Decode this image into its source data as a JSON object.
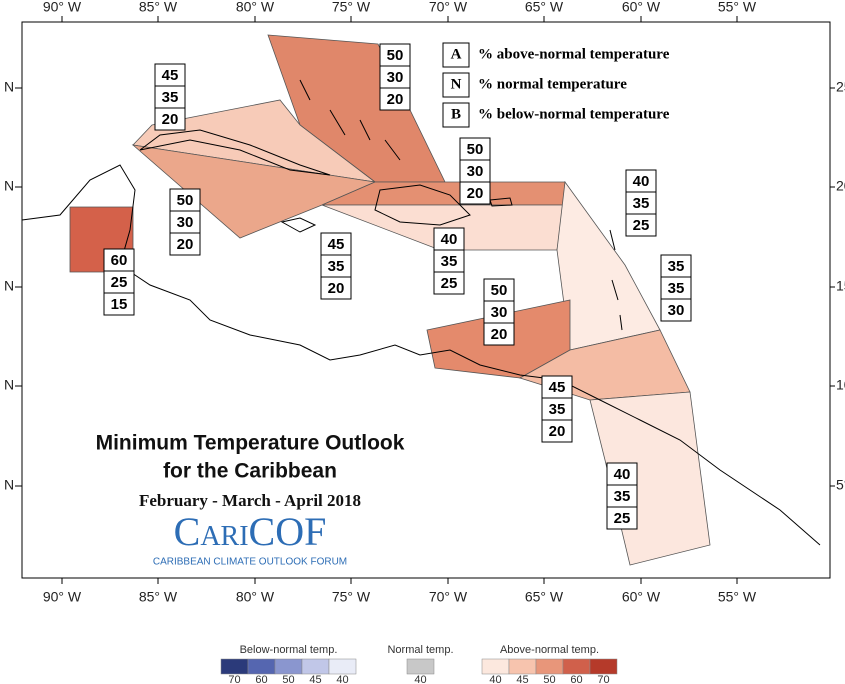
{
  "axes": {
    "top": [
      "90° W",
      "85° W",
      "80° W",
      "75° W",
      "70° W",
      "65° W",
      "60° W",
      "55° W"
    ],
    "bottom": [
      "90° W",
      "85° W",
      "80° W",
      "75° W",
      "70° W",
      "65° W",
      "60° W",
      "55° W"
    ],
    "left": [
      "N",
      "N",
      "N",
      "N",
      "N"
    ],
    "right": [
      "25",
      "20",
      "15",
      "10",
      "5°"
    ]
  },
  "legend": [
    {
      "letter": "A",
      "text": "% above-normal temperature"
    },
    {
      "letter": "N",
      "text": "% normal temperature"
    },
    {
      "letter": "B",
      "text": "% below-normal temperature"
    }
  ],
  "regions": [
    {
      "values": [
        50,
        30,
        20
      ]
    },
    {
      "values": [
        45,
        35,
        20
      ]
    },
    {
      "values": [
        50,
        30,
        20
      ]
    },
    {
      "values": [
        40,
        35,
        25
      ]
    },
    {
      "values": [
        50,
        30,
        20
      ]
    },
    {
      "values": [
        45,
        35,
        20
      ]
    },
    {
      "values": [
        40,
        35,
        25
      ]
    },
    {
      "values": [
        60,
        25,
        15
      ]
    },
    {
      "values": [
        35,
        35,
        30
      ]
    },
    {
      "values": [
        50,
        30,
        20
      ]
    },
    {
      "values": [
        45,
        35,
        20
      ]
    },
    {
      "values": [
        40,
        35,
        25
      ]
    }
  ],
  "title": [
    "Minimum Temperature Outlook",
    "for the Caribbean"
  ],
  "period": "February - March - April 2018",
  "logo": {
    "name": "CariCOF",
    "subtitle": "CARIBBEAN CLIMATE OUTLOOK FORUM"
  },
  "colorbar": {
    "below": {
      "label": "Below-normal temp.",
      "ticks": [
        70,
        60,
        50,
        45,
        40
      ]
    },
    "normal": {
      "label": "Normal temp.",
      "ticks": [
        40
      ]
    },
    "above": {
      "label": "Above-normal temp.",
      "ticks": [
        40,
        45,
        50,
        60,
        70
      ]
    }
  }
}
